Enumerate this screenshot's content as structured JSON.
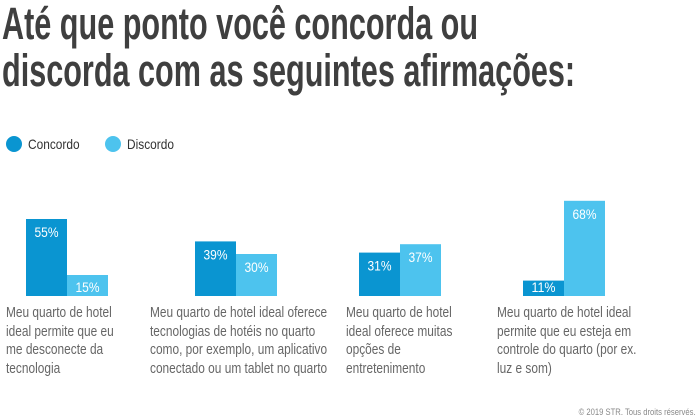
{
  "chart_data": {
    "type": "bar",
    "title": "Até que ponto você concorda ou discorda com as seguintes afirmações:",
    "xlabel": "",
    "ylabel": "",
    "ylim": [
      0,
      70
    ],
    "grid": false,
    "legend_position": "top-left",
    "categories": [
      [
        "Meu quarto de hotel",
        "ideal permite que eu",
        "me desconecte da",
        "tecnologia"
      ],
      [
        "Meu quarto de hotel ideal oferece",
        "tecnologias de hotéis no quarto",
        "como, por exemplo, um aplicativo",
        "conectado ou um tablet no quarto"
      ],
      [
        "Meu quarto de hotel",
        "ideal oferece muitas",
        "opções de",
        "entretenimento"
      ],
      [
        "Meu quarto de hotel ideal",
        "permite que eu esteja em",
        "controle do quarto (por ex.",
        "luz e som)"
      ]
    ],
    "series": [
      {
        "name": "Concordo",
        "color": "#0a95d1",
        "values": [
          55,
          39,
          31,
          11
        ],
        "labels": [
          "55%",
          "39%",
          "31%",
          "11%"
        ]
      },
      {
        "name": "Discordo",
        "color": "#4dc3ee",
        "values": [
          15,
          30,
          37,
          68
        ],
        "labels": [
          "15%",
          "30%",
          "37%",
          "68%"
        ]
      }
    ]
  },
  "footer": "© 2019 STR. Tous droits réservés."
}
